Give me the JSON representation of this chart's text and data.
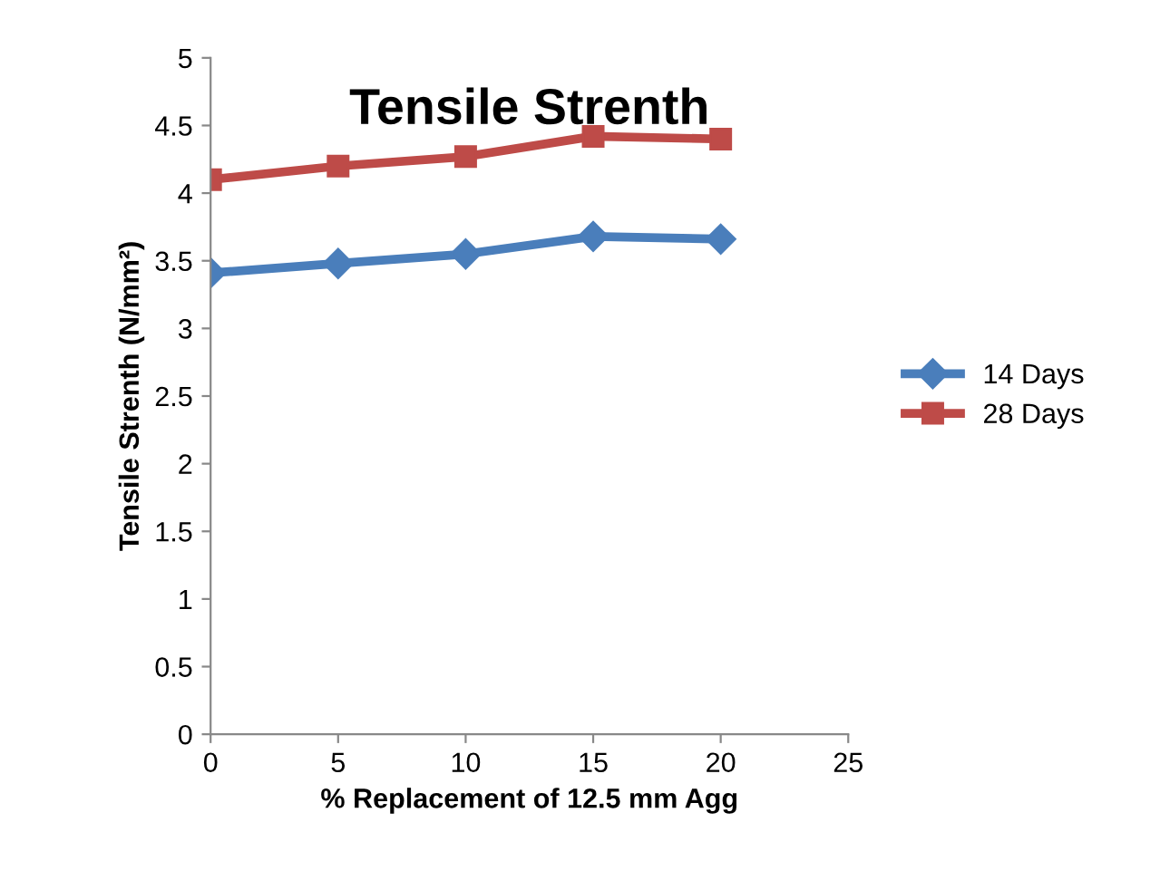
{
  "chart_data": {
    "type": "line",
    "title": "Tensile Strenth",
    "xlabel": "% Replacement of 12.5 mm Agg",
    "ylabel": "Tensile Strenth (N/mm²)",
    "x": [
      0,
      5,
      10,
      15,
      20
    ],
    "series": [
      {
        "name": "14 Days",
        "color": "#4a7ebb",
        "marker": "diamond",
        "values": [
          3.41,
          3.48,
          3.55,
          3.68,
          3.66
        ]
      },
      {
        "name": "28 Days",
        "color": "#be4b48",
        "marker": "square",
        "values": [
          4.1,
          4.2,
          4.27,
          4.42,
          4.4
        ]
      }
    ],
    "xlim": [
      0,
      25
    ],
    "xticks": [
      0,
      5,
      10,
      15,
      20,
      25
    ],
    "ylim": [
      0,
      5
    ],
    "yticks": [
      0,
      0.5,
      1,
      1.5,
      2,
      2.5,
      3,
      3.5,
      4,
      4.5,
      5
    ],
    "grid": false,
    "legend": "right",
    "line_style": "solid"
  }
}
